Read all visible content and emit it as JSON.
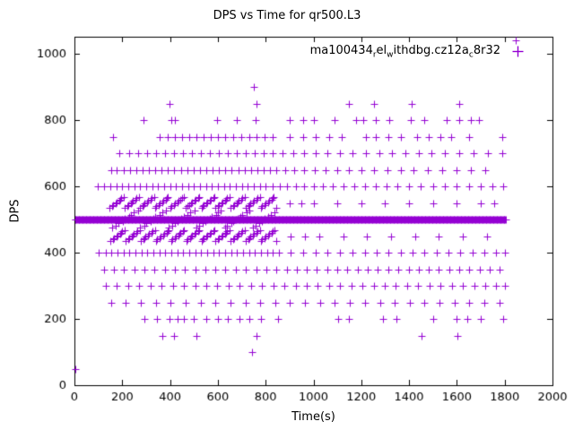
{
  "chart_data": {
    "type": "scatter",
    "title": "DPS vs Time for qr500.L3",
    "xlabel": "Time(s)",
    "ylabel": "DPS",
    "xlim": [
      0,
      2000
    ],
    "ylim": [
      0,
      1052
    ],
    "xticks": [
      0,
      200,
      400,
      600,
      800,
      1000,
      1200,
      1400,
      1600,
      1800,
      2000
    ],
    "yticks": [
      0,
      200,
      400,
      600,
      800,
      1000
    ],
    "legend_label": "ma100434_rel_withdbg.cz12a_c8r32",
    "legend_segments": [
      {
        "t": "ma100434"
      },
      {
        "t": "r",
        "sub": true
      },
      {
        "t": "el"
      },
      {
        "t": "w",
        "sub": true
      },
      {
        "t": "ithdbg.cz12a"
      },
      {
        "t": "c",
        "sub": true
      },
      {
        "t": "8r32"
      }
    ],
    "marker": "plus",
    "color": "#9400d3",
    "axis_color": "#000000",
    "background": "#ffffff",
    "dense_band": {
      "y": 500,
      "x_start": 2,
      "x_end": 1806,
      "step": 3
    },
    "dense_clusters": [
      {
        "y": 552,
        "jitter": 16,
        "x_start": 150,
        "x_end": 848,
        "step": 7
      },
      {
        "y": 452,
        "jitter": 16,
        "x_start": 152,
        "x_end": 848,
        "step": 7
      },
      {
        "y": 502,
        "jitter": 26,
        "x_start": 160,
        "x_end": 840,
        "step": 13
      }
    ],
    "levels": [
      {
        "y": 50,
        "x": [
          2
        ]
      },
      {
        "y": 100,
        "x": [
          742
        ]
      },
      {
        "y": 150,
        "x": [
          368,
          415,
          512,
          760,
          1452,
          1603
        ]
      },
      {
        "y": 200,
        "x": [
          292,
          345,
          398,
          430,
          458,
          498,
          552,
          600,
          642,
          690,
          732,
          782,
          850,
          1102,
          1148,
          1290,
          1348,
          1502,
          1598,
          1645,
          1700,
          1795
        ]
      },
      {
        "y": 250,
        "x": [
          152,
          215,
          278,
          340,
          402,
          465,
          528,
          590,
          652,
          715,
          778,
          840,
          902,
          965,
          1028,
          1090,
          1152,
          1215,
          1278,
          1340,
          1402,
          1465,
          1528,
          1590,
          1652,
          1715,
          1778
        ]
      },
      {
        "y": 300,
        "x": [
          132,
          178,
          225,
          272,
          318,
          365,
          412,
          458,
          505,
          552,
          598,
          645,
          692,
          738,
          785,
          832,
          878,
          925,
          972,
          1018,
          1065,
          1112,
          1158,
          1205,
          1252,
          1298,
          1345,
          1392,
          1438,
          1485,
          1532,
          1578,
          1625,
          1672,
          1718,
          1765,
          1800
        ]
      },
      {
        "y": 350,
        "x": [
          122,
          165,
          208,
          250,
          292,
          335,
          378,
          420,
          462,
          505,
          548,
          590,
          632,
          675,
          718,
          760,
          802,
          845,
          888,
          930,
          972,
          1015,
          1058,
          1100,
          1142,
          1185,
          1228,
          1270,
          1312,
          1355,
          1398,
          1440,
          1482,
          1525,
          1568,
          1610,
          1652,
          1695,
          1738,
          1780
        ]
      },
      {
        "y": 400,
        "x": [
          102,
          130,
          155,
          180,
          205,
          230,
          255,
          280,
          305,
          330,
          355,
          380,
          405,
          430,
          455,
          480,
          505,
          530,
          555,
          580,
          605,
          630,
          655,
          680,
          705,
          730,
          755,
          780,
          805,
          830,
          855,
          905,
          955,
          1010,
          1060,
          1110,
          1165,
          1215,
          1265,
          1315,
          1365,
          1415,
          1465,
          1515,
          1565,
          1615,
          1665,
          1715,
          1765,
          1800
        ]
      },
      {
        "y": 450,
        "x": [
          905,
          965,
          1025,
          1125,
          1225,
          1325,
          1425,
          1525,
          1625,
          1725
        ]
      },
      {
        "y": 550,
        "x": [
          900,
          950,
          1000,
          1100,
          1200,
          1300,
          1400,
          1500,
          1600,
          1700,
          1755
        ]
      },
      {
        "y": 600,
        "x": [
          98,
          125,
          150,
          175,
          200,
          225,
          250,
          275,
          300,
          325,
          350,
          375,
          400,
          425,
          450,
          475,
          500,
          525,
          550,
          575,
          600,
          625,
          650,
          675,
          700,
          725,
          750,
          775,
          800,
          830,
          860,
          890,
          925,
          960,
          1000,
          1040,
          1080,
          1125,
          1170,
          1215,
          1260,
          1305,
          1350,
          1400,
          1450,
          1500,
          1550,
          1600,
          1650,
          1700,
          1750,
          1795
        ]
      },
      {
        "y": 650,
        "x": [
          152,
          178,
          205,
          232,
          258,
          285,
          312,
          338,
          365,
          392,
          418,
          445,
          472,
          498,
          525,
          552,
          578,
          605,
          632,
          658,
          685,
          712,
          738,
          765,
          792,
          818,
          845,
          880,
          920,
          960,
          1005,
          1050,
          1100,
          1150,
          1200,
          1255,
          1310,
          1365,
          1420,
          1480,
          1540,
          1600,
          1660,
          1720
        ]
      },
      {
        "y": 700,
        "x": [
          188,
          230,
          268,
          305,
          342,
          380,
          418,
          455,
          492,
          530,
          568,
          605,
          642,
          680,
          718,
          755,
          792,
          830,
          870,
          915,
          960,
          1010,
          1060,
          1110,
          1165,
          1220,
          1275,
          1330,
          1385,
          1440,
          1495,
          1550,
          1610,
          1670,
          1730,
          1790
        ]
      },
      {
        "y": 750,
        "x": [
          162,
          358,
          390,
          420,
          450,
          480,
          510,
          540,
          570,
          600,
          632,
          665,
          698,
          730,
          762,
          795,
          830,
          900,
          955,
          1010,
          1065,
          1120,
          1220,
          1262,
          1315,
          1365,
          1432,
          1482,
          1532,
          1575,
          1650,
          1790
        ]
      },
      {
        "y": 800,
        "x": [
          288,
          404,
          420,
          598,
          680,
          758,
          902,
          958,
          1002,
          1088,
          1178,
          1208,
          1262,
          1318,
          1408,
          1462,
          1558,
          1608,
          1658,
          1692
        ]
      },
      {
        "y": 850,
        "x": [
          398,
          762,
          1148,
          1252,
          1412,
          1608
        ]
      },
      {
        "y": 900,
        "x": [
          752
        ]
      },
      {
        "y": 1040,
        "x": [
          1848
        ]
      }
    ]
  }
}
